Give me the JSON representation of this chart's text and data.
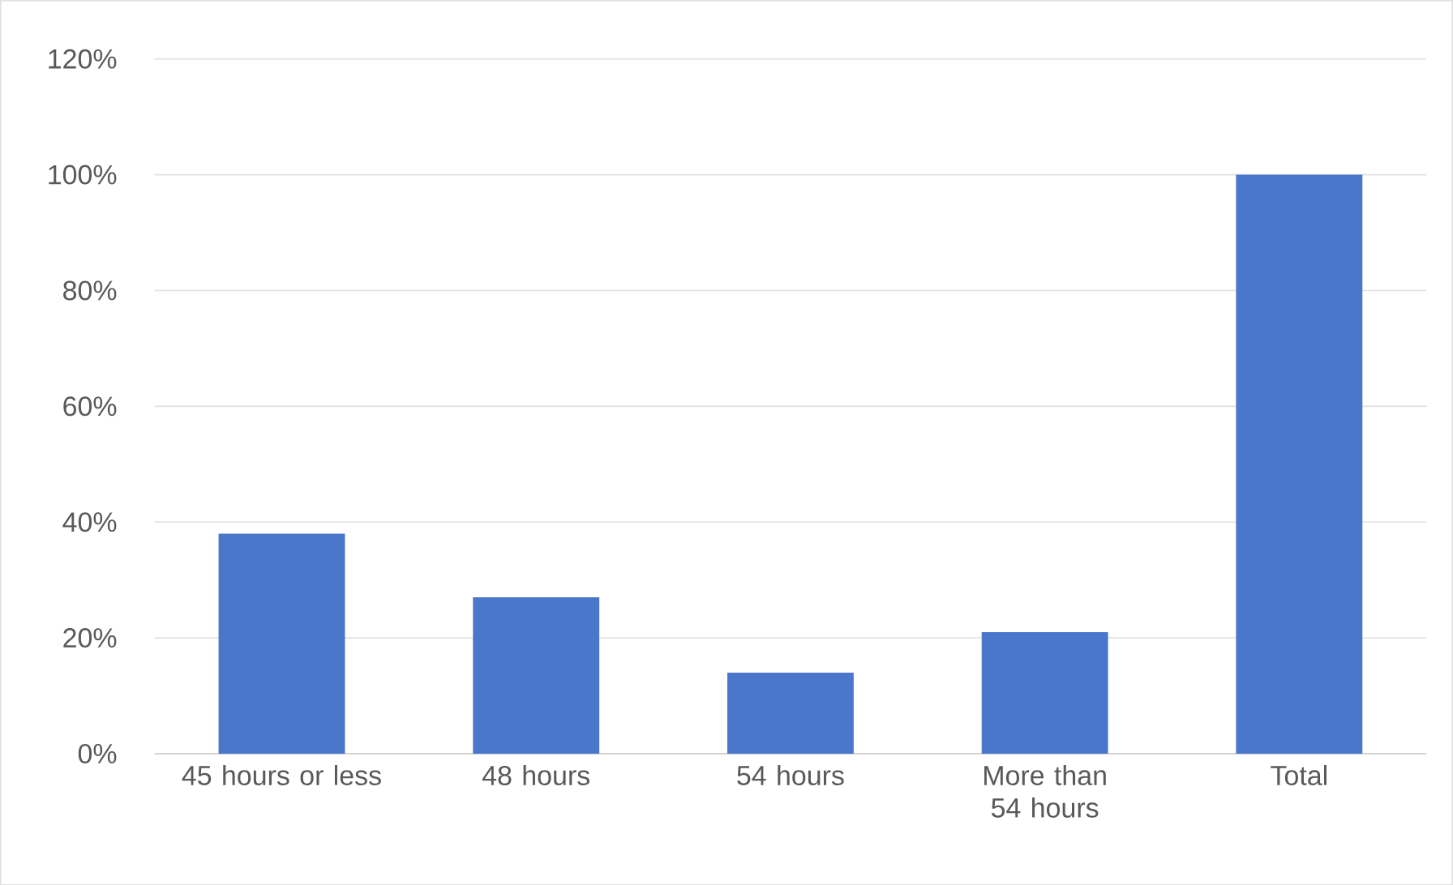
{
  "chart_data": {
    "type": "bar",
    "categories": [
      "45 hours or less",
      "48 hours",
      "54 hours",
      "More than 54 hours",
      "Total"
    ],
    "values": [
      38,
      27,
      14,
      21,
      100
    ],
    "color": "#4a76cc",
    "ylim": [
      0,
      120
    ],
    "yticks": [
      {
        "value": 0,
        "label": "0%"
      },
      {
        "value": 20,
        "label": "20%"
      },
      {
        "value": 40,
        "label": "40%"
      },
      {
        "value": 60,
        "label": "60%"
      },
      {
        "value": 80,
        "label": "80%"
      },
      {
        "value": 100,
        "label": "100%"
      },
      {
        "value": 120,
        "label": "120%"
      }
    ],
    "grid": "y"
  }
}
